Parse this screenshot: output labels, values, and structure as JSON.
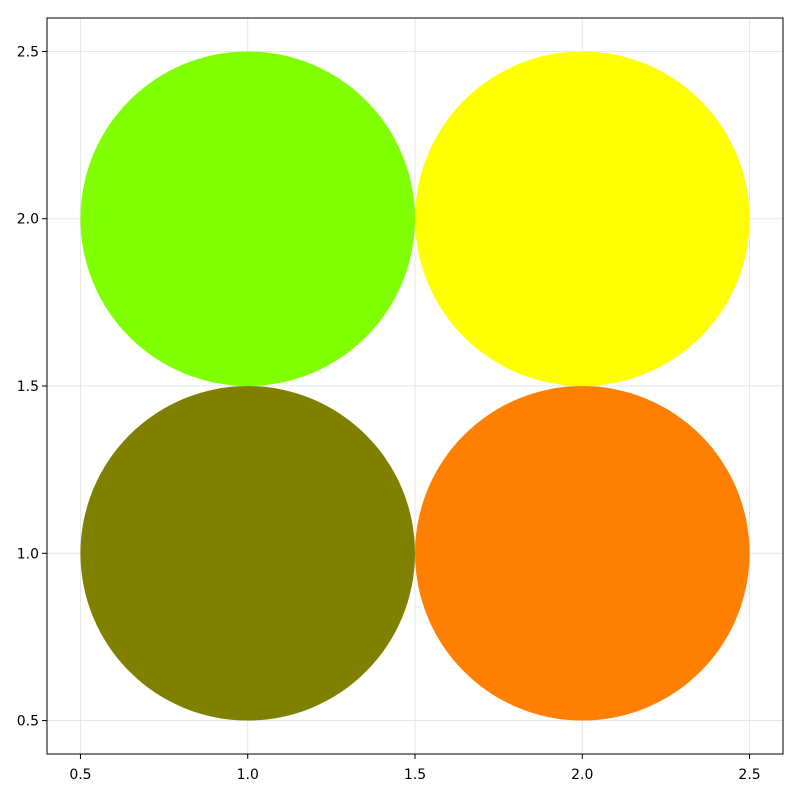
{
  "chart_data": {
    "type": "scatter",
    "title": "",
    "xlabel": "",
    "ylabel": "",
    "xlim": [
      0.4,
      2.6
    ],
    "ylim": [
      0.4,
      2.6
    ],
    "xticks": [
      "0.5",
      "1.0",
      "1.5",
      "2.0",
      "2.5"
    ],
    "yticks": [
      "0.5",
      "1.0",
      "1.5",
      "2.0",
      "2.5"
    ],
    "grid": true,
    "points": [
      {
        "x": 1.0,
        "y": 1.0,
        "radius": 0.5,
        "color": "#808000"
      },
      {
        "x": 2.0,
        "y": 1.0,
        "radius": 0.5,
        "color": "#ff8000"
      },
      {
        "x": 1.0,
        "y": 2.0,
        "radius": 0.5,
        "color": "#80ff00"
      },
      {
        "x": 2.0,
        "y": 2.0,
        "radius": 0.5,
        "color": "#ffff00"
      }
    ]
  }
}
